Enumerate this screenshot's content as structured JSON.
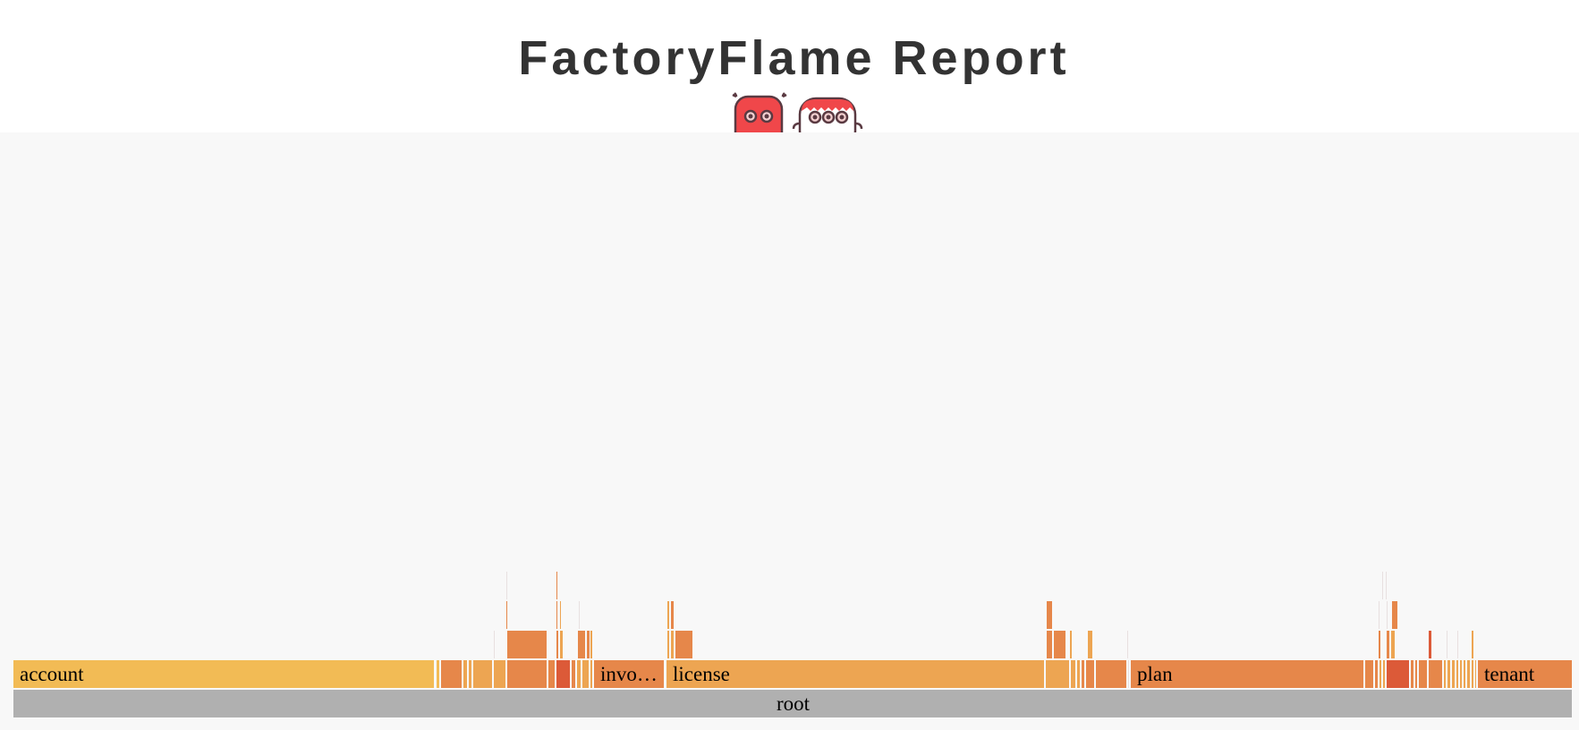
{
  "header": {
    "title": "FactoryFlame Report",
    "mascot_icons": [
      "red-robot-icon",
      "white-red-haired-robot-icon"
    ]
  },
  "chart_data": {
    "type": "flamegraph",
    "title": "FactoryFlame Report",
    "total": 1765,
    "colors": {
      "root": "#b0b0b0",
      "account": "#f2bb55",
      "invoice": "#e6874a",
      "license": "#eda552",
      "plan": "#e6874a",
      "tenant": "#e6874a",
      "dark": "#dc5a38",
      "thin": "#e8e0e0"
    },
    "frames": [
      {
        "name": "root",
        "label": "root",
        "depth": 0,
        "start": 15,
        "value": 1743,
        "color": "root"
      },
      {
        "name": "account",
        "label": "account",
        "depth": 1,
        "start": 15,
        "value": 471,
        "color": "account"
      },
      {
        "name": "",
        "label": "",
        "depth": 1,
        "start": 488,
        "value": 4,
        "color": "account"
      },
      {
        "name": "",
        "label": "",
        "depth": 1,
        "start": 493,
        "value": 24,
        "color": "plan"
      },
      {
        "name": "",
        "label": "",
        "depth": 1,
        "start": 518,
        "value": 5,
        "color": "license"
      },
      {
        "name": "",
        "label": "",
        "depth": 1,
        "start": 524,
        "value": 4,
        "color": "license"
      },
      {
        "name": "",
        "label": "",
        "depth": 1,
        "start": 529,
        "value": 22,
        "color": "license"
      },
      {
        "name": "",
        "label": "",
        "depth": 1,
        "start": 552,
        "value": 14,
        "color": "license"
      },
      {
        "name": "",
        "label": "",
        "depth": 1,
        "start": 567,
        "value": 45,
        "color": "plan"
      },
      {
        "name": "",
        "label": "",
        "depth": 1,
        "start": 613,
        "value": 8,
        "color": "plan"
      },
      {
        "name": "",
        "label": "",
        "depth": 1,
        "start": 622,
        "value": 16,
        "color": "dark"
      },
      {
        "name": "",
        "label": "",
        "depth": 1,
        "start": 639,
        "value": 5,
        "color": "plan"
      },
      {
        "name": "",
        "label": "",
        "depth": 1,
        "start": 645,
        "value": 5,
        "color": "license"
      },
      {
        "name": "",
        "label": "",
        "depth": 1,
        "start": 651,
        "value": 8,
        "color": "license"
      },
      {
        "name": "",
        "label": "",
        "depth": 1,
        "start": 660,
        "value": 3,
        "color": "license"
      },
      {
        "name": "invoice",
        "label": "invo…",
        "depth": 1,
        "start": 664,
        "value": 79,
        "color": "invoice"
      },
      {
        "name": "license",
        "label": "license",
        "depth": 1,
        "start": 745,
        "value": 423,
        "color": "license"
      },
      {
        "name": "",
        "label": "",
        "depth": 1,
        "start": 1169,
        "value": 27,
        "color": "license"
      },
      {
        "name": "",
        "label": "",
        "depth": 1,
        "start": 1197,
        "value": 6,
        "color": "license"
      },
      {
        "name": "",
        "label": "",
        "depth": 1,
        "start": 1204,
        "value": 4,
        "color": "license"
      },
      {
        "name": "",
        "label": "",
        "depth": 1,
        "start": 1209,
        "value": 4,
        "color": "plan"
      },
      {
        "name": "",
        "label": "",
        "depth": 1,
        "start": 1214,
        "value": 10,
        "color": "plan"
      },
      {
        "name": "",
        "label": "",
        "depth": 1,
        "start": 1225,
        "value": 35,
        "color": "plan"
      },
      {
        "name": "",
        "label": "",
        "depth": 1,
        "start": 1261,
        "value": 2,
        "color": "thin"
      },
      {
        "name": "plan",
        "label": "plan",
        "depth": 1,
        "start": 1264,
        "value": 261,
        "color": "plan"
      },
      {
        "name": "",
        "label": "",
        "depth": 1,
        "start": 1526,
        "value": 10,
        "color": "plan"
      },
      {
        "name": "",
        "label": "",
        "depth": 1,
        "start": 1537,
        "value": 4,
        "color": "plan"
      },
      {
        "name": "",
        "label": "",
        "depth": 1,
        "start": 1542,
        "value": 3,
        "color": "license"
      },
      {
        "name": "",
        "label": "",
        "depth": 1,
        "start": 1546,
        "value": 3,
        "color": "license"
      },
      {
        "name": "",
        "label": "",
        "depth": 1,
        "start": 1550,
        "value": 26,
        "color": "dark"
      },
      {
        "name": "",
        "label": "",
        "depth": 1,
        "start": 1577,
        "value": 4,
        "color": "plan"
      },
      {
        "name": "",
        "label": "",
        "depth": 1,
        "start": 1582,
        "value": 3,
        "color": "plan"
      },
      {
        "name": "",
        "label": "",
        "depth": 1,
        "start": 1586,
        "value": 10,
        "color": "plan"
      },
      {
        "name": "",
        "label": "",
        "depth": 1,
        "start": 1597,
        "value": 16,
        "color": "plan"
      },
      {
        "name": "",
        "label": "",
        "depth": 1,
        "start": 1614,
        "value": 3,
        "color": "license"
      },
      {
        "name": "",
        "label": "",
        "depth": 1,
        "start": 1618,
        "value": 4,
        "color": "license"
      },
      {
        "name": "",
        "label": "",
        "depth": 1,
        "start": 1623,
        "value": 4,
        "color": "license"
      },
      {
        "name": "",
        "label": "",
        "depth": 1,
        "start": 1628,
        "value": 3,
        "color": "license"
      },
      {
        "name": "",
        "label": "",
        "depth": 1,
        "start": 1632,
        "value": 3,
        "color": "license"
      },
      {
        "name": "",
        "label": "",
        "depth": 1,
        "start": 1636,
        "value": 3,
        "color": "license"
      },
      {
        "name": "",
        "label": "",
        "depth": 1,
        "start": 1640,
        "value": 4,
        "color": "license"
      },
      {
        "name": "",
        "label": "",
        "depth": 1,
        "start": 1645,
        "value": 3,
        "color": "license"
      },
      {
        "name": "",
        "label": "",
        "depth": 1,
        "start": 1649,
        "value": 2,
        "color": "license"
      },
      {
        "name": "tenant",
        "label": "tenant",
        "depth": 1,
        "start": 1652,
        "value": 106,
        "color": "tenant"
      },
      {
        "name": "",
        "label": "",
        "depth": 2,
        "start": 552,
        "value": 1,
        "color": "thin"
      },
      {
        "name": "",
        "label": "",
        "depth": 2,
        "start": 567,
        "value": 45,
        "color": "plan"
      },
      {
        "name": "",
        "label": "",
        "depth": 2,
        "start": 622,
        "value": 3,
        "color": "plan"
      },
      {
        "name": "",
        "label": "",
        "depth": 2,
        "start": 626,
        "value": 4,
        "color": "license"
      },
      {
        "name": "",
        "label": "",
        "depth": 2,
        "start": 646,
        "value": 9,
        "color": "plan"
      },
      {
        "name": "",
        "label": "",
        "depth": 2,
        "start": 656,
        "value": 4,
        "color": "plan"
      },
      {
        "name": "",
        "label": "",
        "depth": 2,
        "start": 660,
        "value": 3,
        "color": "license"
      },
      {
        "name": "",
        "label": "",
        "depth": 2,
        "start": 746,
        "value": 3,
        "color": "license"
      },
      {
        "name": "",
        "label": "",
        "depth": 2,
        "start": 750,
        "value": 4,
        "color": "license"
      },
      {
        "name": "",
        "label": "",
        "depth": 2,
        "start": 755,
        "value": 20,
        "color": "plan"
      },
      {
        "name": "",
        "label": "",
        "depth": 2,
        "start": 1170,
        "value": 7,
        "color": "plan"
      },
      {
        "name": "",
        "label": "",
        "depth": 2,
        "start": 1178,
        "value": 14,
        "color": "plan"
      },
      {
        "name": "",
        "label": "",
        "depth": 2,
        "start": 1196,
        "value": 3,
        "color": "license"
      },
      {
        "name": "",
        "label": "",
        "depth": 2,
        "start": 1216,
        "value": 6,
        "color": "license"
      },
      {
        "name": "",
        "label": "",
        "depth": 2,
        "start": 1260,
        "value": 2,
        "color": "thin"
      },
      {
        "name": "",
        "label": "",
        "depth": 2,
        "start": 1541,
        "value": 3,
        "color": "plan"
      },
      {
        "name": "",
        "label": "",
        "depth": 2,
        "start": 1550,
        "value": 4,
        "color": "plan"
      },
      {
        "name": "",
        "label": "",
        "depth": 2,
        "start": 1555,
        "value": 5,
        "color": "license"
      },
      {
        "name": "",
        "label": "",
        "depth": 2,
        "start": 1597,
        "value": 4,
        "color": "dark"
      },
      {
        "name": "",
        "label": "",
        "depth": 2,
        "start": 1617,
        "value": 1,
        "color": "thin"
      },
      {
        "name": "",
        "label": "",
        "depth": 2,
        "start": 1629,
        "value": 1,
        "color": "thin"
      },
      {
        "name": "",
        "label": "",
        "depth": 2,
        "start": 1645,
        "value": 3,
        "color": "license"
      },
      {
        "name": "",
        "label": "",
        "depth": 3,
        "start": 566,
        "value": 2,
        "color": "plan"
      },
      {
        "name": "",
        "label": "",
        "depth": 3,
        "start": 622,
        "value": 2,
        "color": "plan"
      },
      {
        "name": "",
        "label": "",
        "depth": 3,
        "start": 626,
        "value": 2,
        "color": "license"
      },
      {
        "name": "",
        "label": "",
        "depth": 3,
        "start": 647,
        "value": 1,
        "color": "thin"
      },
      {
        "name": "",
        "label": "",
        "depth": 3,
        "start": 746,
        "value": 3,
        "color": "license"
      },
      {
        "name": "",
        "label": "",
        "depth": 3,
        "start": 750,
        "value": 4,
        "color": "plan"
      },
      {
        "name": "",
        "label": "",
        "depth": 3,
        "start": 1170,
        "value": 7,
        "color": "plan"
      },
      {
        "name": "",
        "label": "",
        "depth": 3,
        "start": 1541,
        "value": 2,
        "color": "thin"
      },
      {
        "name": "",
        "label": "",
        "depth": 3,
        "start": 1550,
        "value": 2,
        "color": "thin"
      },
      {
        "name": "",
        "label": "",
        "depth": 3,
        "start": 1556,
        "value": 7,
        "color": "plan"
      },
      {
        "name": "",
        "label": "",
        "depth": 4,
        "start": 566,
        "value": 1,
        "color": "thin"
      },
      {
        "name": "",
        "label": "",
        "depth": 4,
        "start": 622,
        "value": 2,
        "color": "plan"
      },
      {
        "name": "",
        "label": "",
        "depth": 4,
        "start": 1545,
        "value": 1,
        "color": "thin"
      },
      {
        "name": "",
        "label": "",
        "depth": 4,
        "start": 1549,
        "value": 1,
        "color": "thin"
      }
    ]
  }
}
